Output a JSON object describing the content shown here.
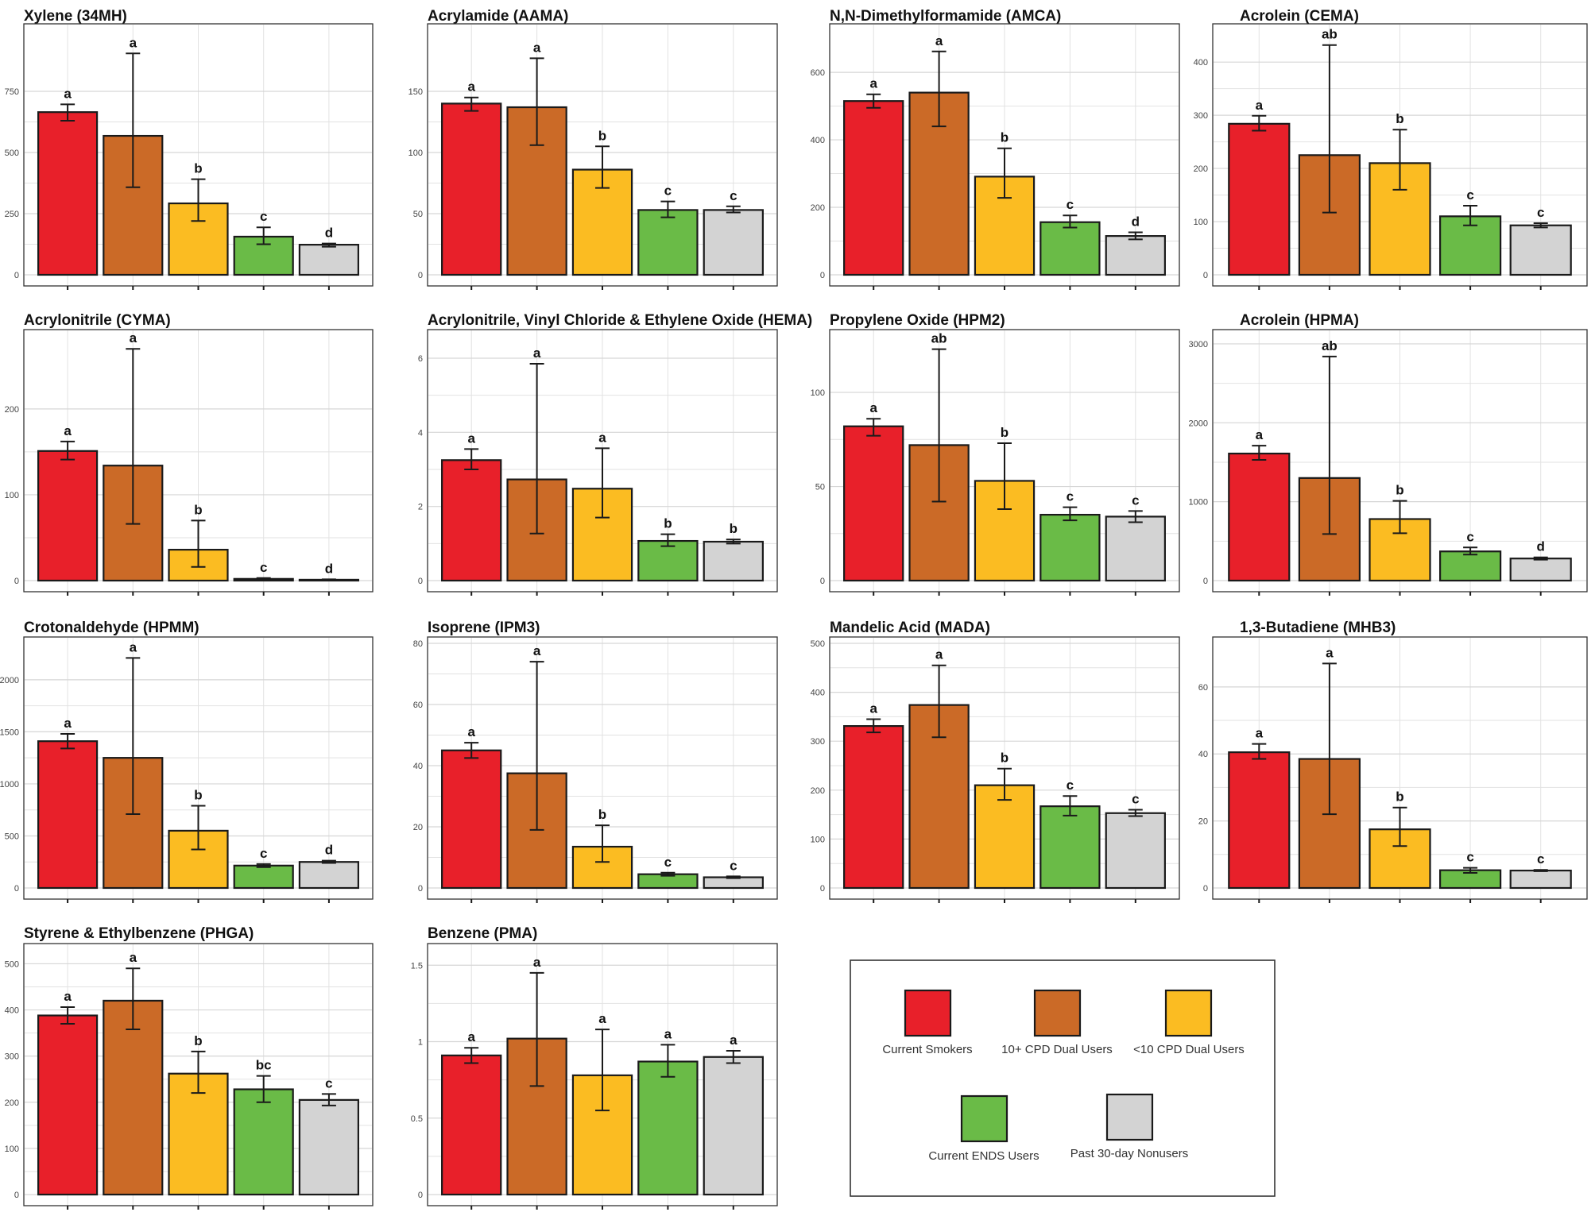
{
  "groups": [
    "Current Smokers",
    "10+ CPD Dual Users",
    "<10 CPD Dual Users",
    "Current ENDS Users",
    "Past 30-day Nonusers"
  ],
  "colors": [
    "#e8202a",
    "#cb6a27",
    "#fbbc22",
    "#6abb47",
    "#d3d3d3"
  ],
  "chart_data": [
    {
      "type": "bar",
      "title": "Xylene (34MH)",
      "ylim": [
        0,
        1000
      ],
      "ticks": [
        0,
        250,
        500,
        750
      ],
      "values": [
        665,
        568,
        292,
        156,
        123
      ],
      "err_low": [
        630,
        358,
        220,
        125,
        115
      ],
      "err_high": [
        697,
        905,
        391,
        194,
        128
      ],
      "labels": [
        "a",
        "a",
        "b",
        "c",
        "d"
      ]
    },
    {
      "type": "bar",
      "title": "Acrylamide (AAMA)",
      "ylim": [
        0,
        200
      ],
      "ticks": [
        0,
        50,
        100,
        150
      ],
      "values": [
        140,
        137,
        86,
        53,
        53
      ],
      "err_low": [
        134,
        106,
        71,
        47,
        51
      ],
      "err_high": [
        145,
        177,
        105,
        60,
        56
      ],
      "labels": [
        "a",
        "a",
        "b",
        "c",
        "c"
      ]
    },
    {
      "type": "bar",
      "title": "N,N-Dimethylformamide (AMCA)",
      "ylim": [
        0,
        725
      ],
      "ticks": [
        0,
        200,
        400,
        600
      ],
      "values": [
        515,
        540,
        291,
        156,
        115
      ],
      "err_low": [
        495,
        440,
        228,
        140,
        105
      ],
      "err_high": [
        535,
        662,
        375,
        176,
        126
      ],
      "labels": [
        "a",
        "a",
        "b",
        "c",
        "d"
      ]
    },
    {
      "type": "bar",
      "title": "Acrolein (CEMA)",
      "ylim": [
        0,
        460
      ],
      "ticks": [
        0,
        100,
        200,
        300,
        400
      ],
      "values": [
        284,
        225,
        210,
        110,
        93
      ],
      "err_low": [
        271,
        117,
        160,
        93,
        89
      ],
      "err_high": [
        299,
        432,
        273,
        130,
        97
      ],
      "labels": [
        "a",
        "ab",
        "b",
        "c",
        "c"
      ]
    },
    {
      "type": "bar",
      "title": "Acrylonitrile (CYMA)",
      "ylim": [
        0,
        285
      ],
      "ticks": [
        0,
        100,
        200
      ],
      "values": [
        151,
        134,
        36,
        2,
        1
      ],
      "err_low": [
        141,
        66,
        16,
        1,
        0.5
      ],
      "err_high": [
        162,
        270,
        70,
        3,
        1.5
      ],
      "labels": [
        "a",
        "a",
        "b",
        "c",
        "d"
      ]
    },
    {
      "type": "bar",
      "title": "Acrylonitrile, Vinyl Chloride & Ethylene Oxide (HEMA)",
      "ylim": [
        0,
        6.6
      ],
      "ticks": [
        0,
        2,
        4,
        6
      ],
      "values": [
        3.25,
        2.73,
        2.48,
        1.07,
        1.05
      ],
      "err_low": [
        3.0,
        1.27,
        1.7,
        0.93,
        1.0
      ],
      "err_high": [
        3.55,
        5.85,
        3.57,
        1.25,
        1.11
      ],
      "labels": [
        "a",
        "a",
        "a",
        "b",
        "b"
      ]
    },
    {
      "type": "bar",
      "title": "Propylene Oxide (HPM2)",
      "ylim": [
        0,
        130
      ],
      "ticks": [
        0,
        50,
        100
      ],
      "values": [
        82,
        72,
        53,
        35,
        34
      ],
      "err_low": [
        77,
        42,
        38,
        32,
        31
      ],
      "err_high": [
        86,
        123,
        73,
        39,
        37
      ],
      "labels": [
        "a",
        "ab",
        "b",
        "c",
        "c"
      ]
    },
    {
      "type": "bar",
      "title": "Acrolein (HPMA)",
      "ylim": [
        0,
        3100
      ],
      "ticks": [
        0,
        1000,
        2000,
        3000
      ],
      "values": [
        1610,
        1300,
        780,
        370,
        280
      ],
      "err_low": [
        1530,
        590,
        600,
        330,
        265
      ],
      "err_high": [
        1710,
        2840,
        1010,
        420,
        295
      ],
      "labels": [
        "a",
        "ab",
        "b",
        "c",
        "d"
      ]
    },
    {
      "type": "bar",
      "title": "Crotonaldehyde (HPMM)",
      "ylim": [
        0,
        2350
      ],
      "ticks": [
        0,
        500,
        1000,
        1500,
        2000
      ],
      "values": [
        1410,
        1250,
        550,
        215,
        250
      ],
      "err_low": [
        1340,
        710,
        370,
        200,
        240
      ],
      "err_high": [
        1480,
        2210,
        790,
        230,
        262
      ],
      "labels": [
        "a",
        "a",
        "b",
        "c",
        "d"
      ]
    },
    {
      "type": "bar",
      "title": "Isoprene (IPM3)",
      "ylim": [
        0,
        80
      ],
      "ticks": [
        0,
        20,
        40,
        60,
        80
      ],
      "values": [
        45,
        37.5,
        13.5,
        4.5,
        3.5
      ],
      "err_low": [
        42.5,
        19,
        8.5,
        4,
        3.2
      ],
      "err_high": [
        47.5,
        74,
        20.5,
        5,
        3.8
      ],
      "labels": [
        "a",
        "a",
        "b",
        "c",
        "c"
      ]
    },
    {
      "type": "bar",
      "title": "Mandelic Acid (MADA)",
      "ylim": [
        0,
        500
      ],
      "ticks": [
        0,
        100,
        200,
        300,
        400,
        500
      ],
      "values": [
        331,
        374,
        210,
        167,
        153
      ],
      "err_low": [
        318,
        308,
        180,
        148,
        147
      ],
      "err_high": [
        345,
        455,
        244,
        188,
        160
      ],
      "labels": [
        "a",
        "a",
        "b",
        "c",
        "c"
      ]
    },
    {
      "type": "bar",
      "title": "1,3-Butadiene (MHB3)",
      "ylim": [
        0,
        73
      ],
      "ticks": [
        0,
        20,
        40,
        60
      ],
      "values": [
        40.5,
        38.5,
        17.5,
        5.3,
        5.2
      ],
      "err_low": [
        38.5,
        22,
        12.5,
        4.5,
        5.0
      ],
      "err_high": [
        43,
        67,
        24,
        6,
        5.4
      ],
      "labels": [
        "a",
        "a",
        "b",
        "c",
        "c"
      ]
    },
    {
      "type": "bar",
      "title": "Styrene & Ethylbenzene (PHGA)",
      "ylim": [
        0,
        530
      ],
      "ticks": [
        0,
        100,
        200,
        300,
        400,
        500
      ],
      "values": [
        388,
        420,
        262,
        228,
        205
      ],
      "err_low": [
        370,
        358,
        220,
        200,
        193
      ],
      "err_high": [
        406,
        490,
        310,
        257,
        218
      ],
      "labels": [
        "a",
        "a",
        "b",
        "bc",
        "c"
      ]
    },
    {
      "type": "bar",
      "title": "Benzene (PMA)",
      "ylim": [
        0,
        1.6
      ],
      "ticks": [
        0.0,
        0.5,
        1.0,
        1.5
      ],
      "values": [
        0.91,
        1.02,
        0.78,
        0.87,
        0.9
      ],
      "err_low": [
        0.86,
        0.71,
        0.55,
        0.77,
        0.86
      ],
      "err_high": [
        0.96,
        1.45,
        1.08,
        0.98,
        0.94
      ],
      "labels": [
        "a",
        "a",
        "a",
        "a",
        "a"
      ]
    }
  ]
}
